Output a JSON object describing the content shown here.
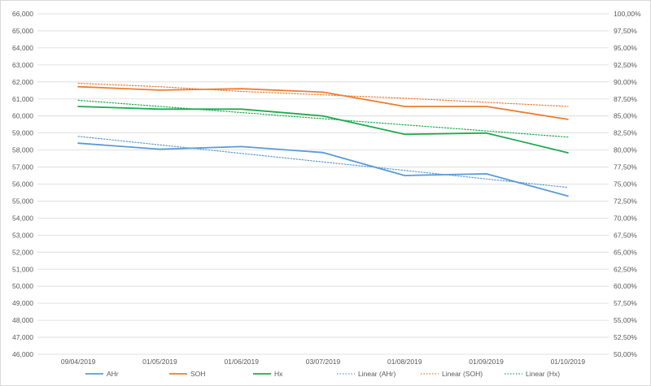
{
  "chart_data": {
    "type": "line",
    "categories": [
      "09/04/2019",
      "01/05/2019",
      "01/06/2019",
      "03/07/2019",
      "01/08/2019",
      "01/09/2019",
      "01/10/2019"
    ],
    "left_axis": {
      "min": 46000,
      "max": 66000,
      "step": 1000,
      "tick_labels": [
        "46,000",
        "47,000",
        "48,000",
        "49,000",
        "50,000",
        "51,000",
        "52,000",
        "53,000",
        "54,000",
        "55,000",
        "56,000",
        "57,000",
        "58,000",
        "59,000",
        "60,000",
        "61,000",
        "62,000",
        "63,000",
        "64,000",
        "65,000",
        "66,000"
      ]
    },
    "right_axis": {
      "min": 0.5,
      "max": 1.0,
      "step": 0.025,
      "tick_labels": [
        "50,00%",
        "52,50%",
        "55,00%",
        "57,50%",
        "60,00%",
        "62,50%",
        "65,00%",
        "67,50%",
        "70,00%",
        "72,50%",
        "75,00%",
        "77,50%",
        "80,00%",
        "82,50%",
        "85,00%",
        "87,50%",
        "90,00%",
        "92,50%",
        "95,00%",
        "97,50%",
        "100,00%"
      ]
    },
    "grid": true,
    "legend_position": "bottom",
    "series": [
      {
        "name": "AHr",
        "axis": "left",
        "style": "solid",
        "color": "#5b9bd5",
        "values": [
          58400,
          58050,
          58200,
          57850,
          56500,
          56600,
          55300
        ]
      },
      {
        "name": "SOH",
        "axis": "right",
        "style": "solid",
        "color": "#ed7d31",
        "values": [
          0.893,
          0.888,
          0.89,
          0.885,
          0.864,
          0.864,
          0.845
        ]
      },
      {
        "name": "Hx",
        "axis": "right",
        "style": "solid",
        "color": "#1faa50",
        "values": [
          0.864,
          0.86,
          0.86,
          0.85,
          0.823,
          0.825,
          0.796
        ]
      },
      {
        "name": "Linear (AHr)",
        "axis": "left",
        "style": "dotted",
        "color": "#5b9bd5",
        "values": [
          58800,
          58300,
          57800,
          57300,
          56800,
          56300,
          55800
        ]
      },
      {
        "name": "Linear (SOH)",
        "axis": "right",
        "style": "dotted",
        "color": "#ed7d31",
        "values": [
          0.898,
          0.893,
          0.886,
          0.881,
          0.876,
          0.87,
          0.864
        ]
      },
      {
        "name": "Linear (Hx)",
        "axis": "right",
        "style": "dotted",
        "color": "#1faa50",
        "values": [
          0.873,
          0.864,
          0.855,
          0.846,
          0.837,
          0.828,
          0.819
        ]
      }
    ]
  }
}
